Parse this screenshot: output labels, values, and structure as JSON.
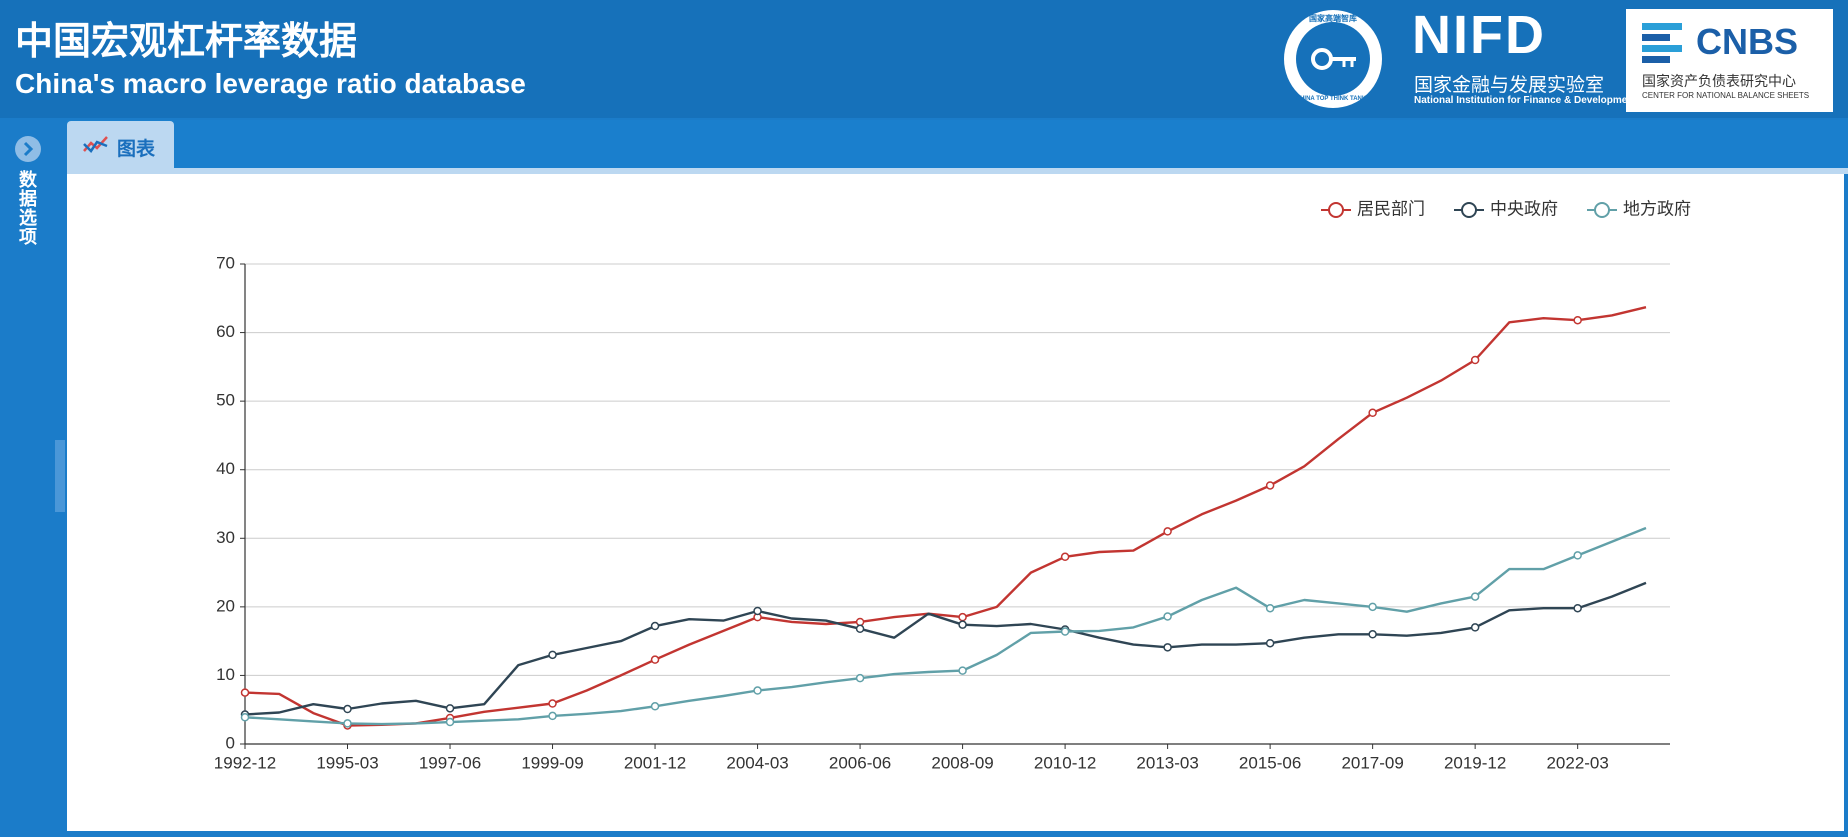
{
  "header": {
    "title": "中国宏观杠杆率数据",
    "subtitle": "China's macro leverage ratio database",
    "think_tank_cn": "国家高端智库",
    "think_tank_en": "CHINA TOP THINK TANKS",
    "nifd": "NIFD",
    "nifd_cn": "国家金融与发展实验室",
    "nifd_en": "National Institution for Finance & Development",
    "cnbs": "CNBS",
    "cnbs_cn": "国家资产负债表研究中心",
    "cnbs_en": "CENTER FOR NATIONAL BALANCE SHEETS"
  },
  "sidebar": {
    "label": "数据选项"
  },
  "tabs": [
    "图表"
  ],
  "chart_data": {
    "type": "line",
    "categories": [
      "1992-12",
      null,
      null,
      "1995-03",
      null,
      null,
      "1997-06",
      null,
      null,
      "1999-09",
      null,
      null,
      "2001-12",
      null,
      null,
      "2004-03",
      null,
      null,
      "2006-06",
      null,
      null,
      "2008-09",
      null,
      null,
      "2010-12",
      null,
      null,
      "2013-03",
      null,
      null,
      "2015-06",
      null,
      null,
      "2017-09",
      null,
      null,
      "2019-12",
      null,
      null,
      "2022-03",
      null,
      null
    ],
    "series": [
      {
        "name": "居民部门",
        "color": "#c23531",
        "values": [
          7.5,
          7.3,
          4.5,
          2.7,
          2.8,
          3.0,
          3.8,
          4.7,
          5.3,
          5.9,
          7.8,
          10.0,
          12.3,
          14.5,
          16.5,
          18.5,
          17.8,
          17.5,
          17.8,
          18.5,
          19.0,
          18.5,
          20.0,
          25.0,
          27.3,
          28.0,
          28.2,
          31.0,
          33.5,
          35.5,
          37.7,
          40.5,
          44.5,
          48.3,
          50.5,
          53.0,
          56.0,
          61.5,
          62.1,
          61.8,
          62.5,
          63.7
        ]
      },
      {
        "name": "中央政府",
        "color": "#2f4554",
        "values": [
          4.3,
          4.6,
          5.8,
          5.1,
          5.9,
          6.3,
          5.2,
          5.8,
          11.5,
          13.0,
          14.0,
          15.0,
          17.2,
          18.2,
          18.0,
          19.4,
          18.3,
          18.0,
          16.8,
          15.5,
          19.0,
          17.4,
          17.2,
          17.5,
          16.7,
          15.5,
          14.5,
          14.1,
          14.5,
          14.5,
          14.7,
          15.5,
          16.0,
          16.0,
          15.8,
          16.2,
          17.0,
          19.5,
          19.8,
          19.8,
          21.5,
          23.5
        ]
      },
      {
        "name": "地方政府",
        "color": "#61a0a8",
        "values": [
          3.9,
          3.6,
          3.3,
          3.0,
          2.9,
          3.0,
          3.2,
          3.4,
          3.6,
          4.1,
          4.4,
          4.8,
          5.5,
          6.3,
          7.0,
          7.8,
          8.3,
          9.0,
          9.6,
          10.2,
          10.5,
          10.7,
          13.0,
          16.2,
          16.4,
          16.5,
          17.0,
          18.6,
          21.0,
          22.8,
          19.8,
          21.0,
          20.5,
          20.0,
          19.3,
          20.5,
          21.5,
          25.5,
          25.5,
          27.5,
          29.5,
          31.5
        ]
      }
    ],
    "ylim": [
      0,
      70
    ],
    "yticks": [
      0,
      10,
      20,
      30,
      40,
      50,
      60,
      70
    ],
    "grid": true,
    "legend": "top-right"
  }
}
